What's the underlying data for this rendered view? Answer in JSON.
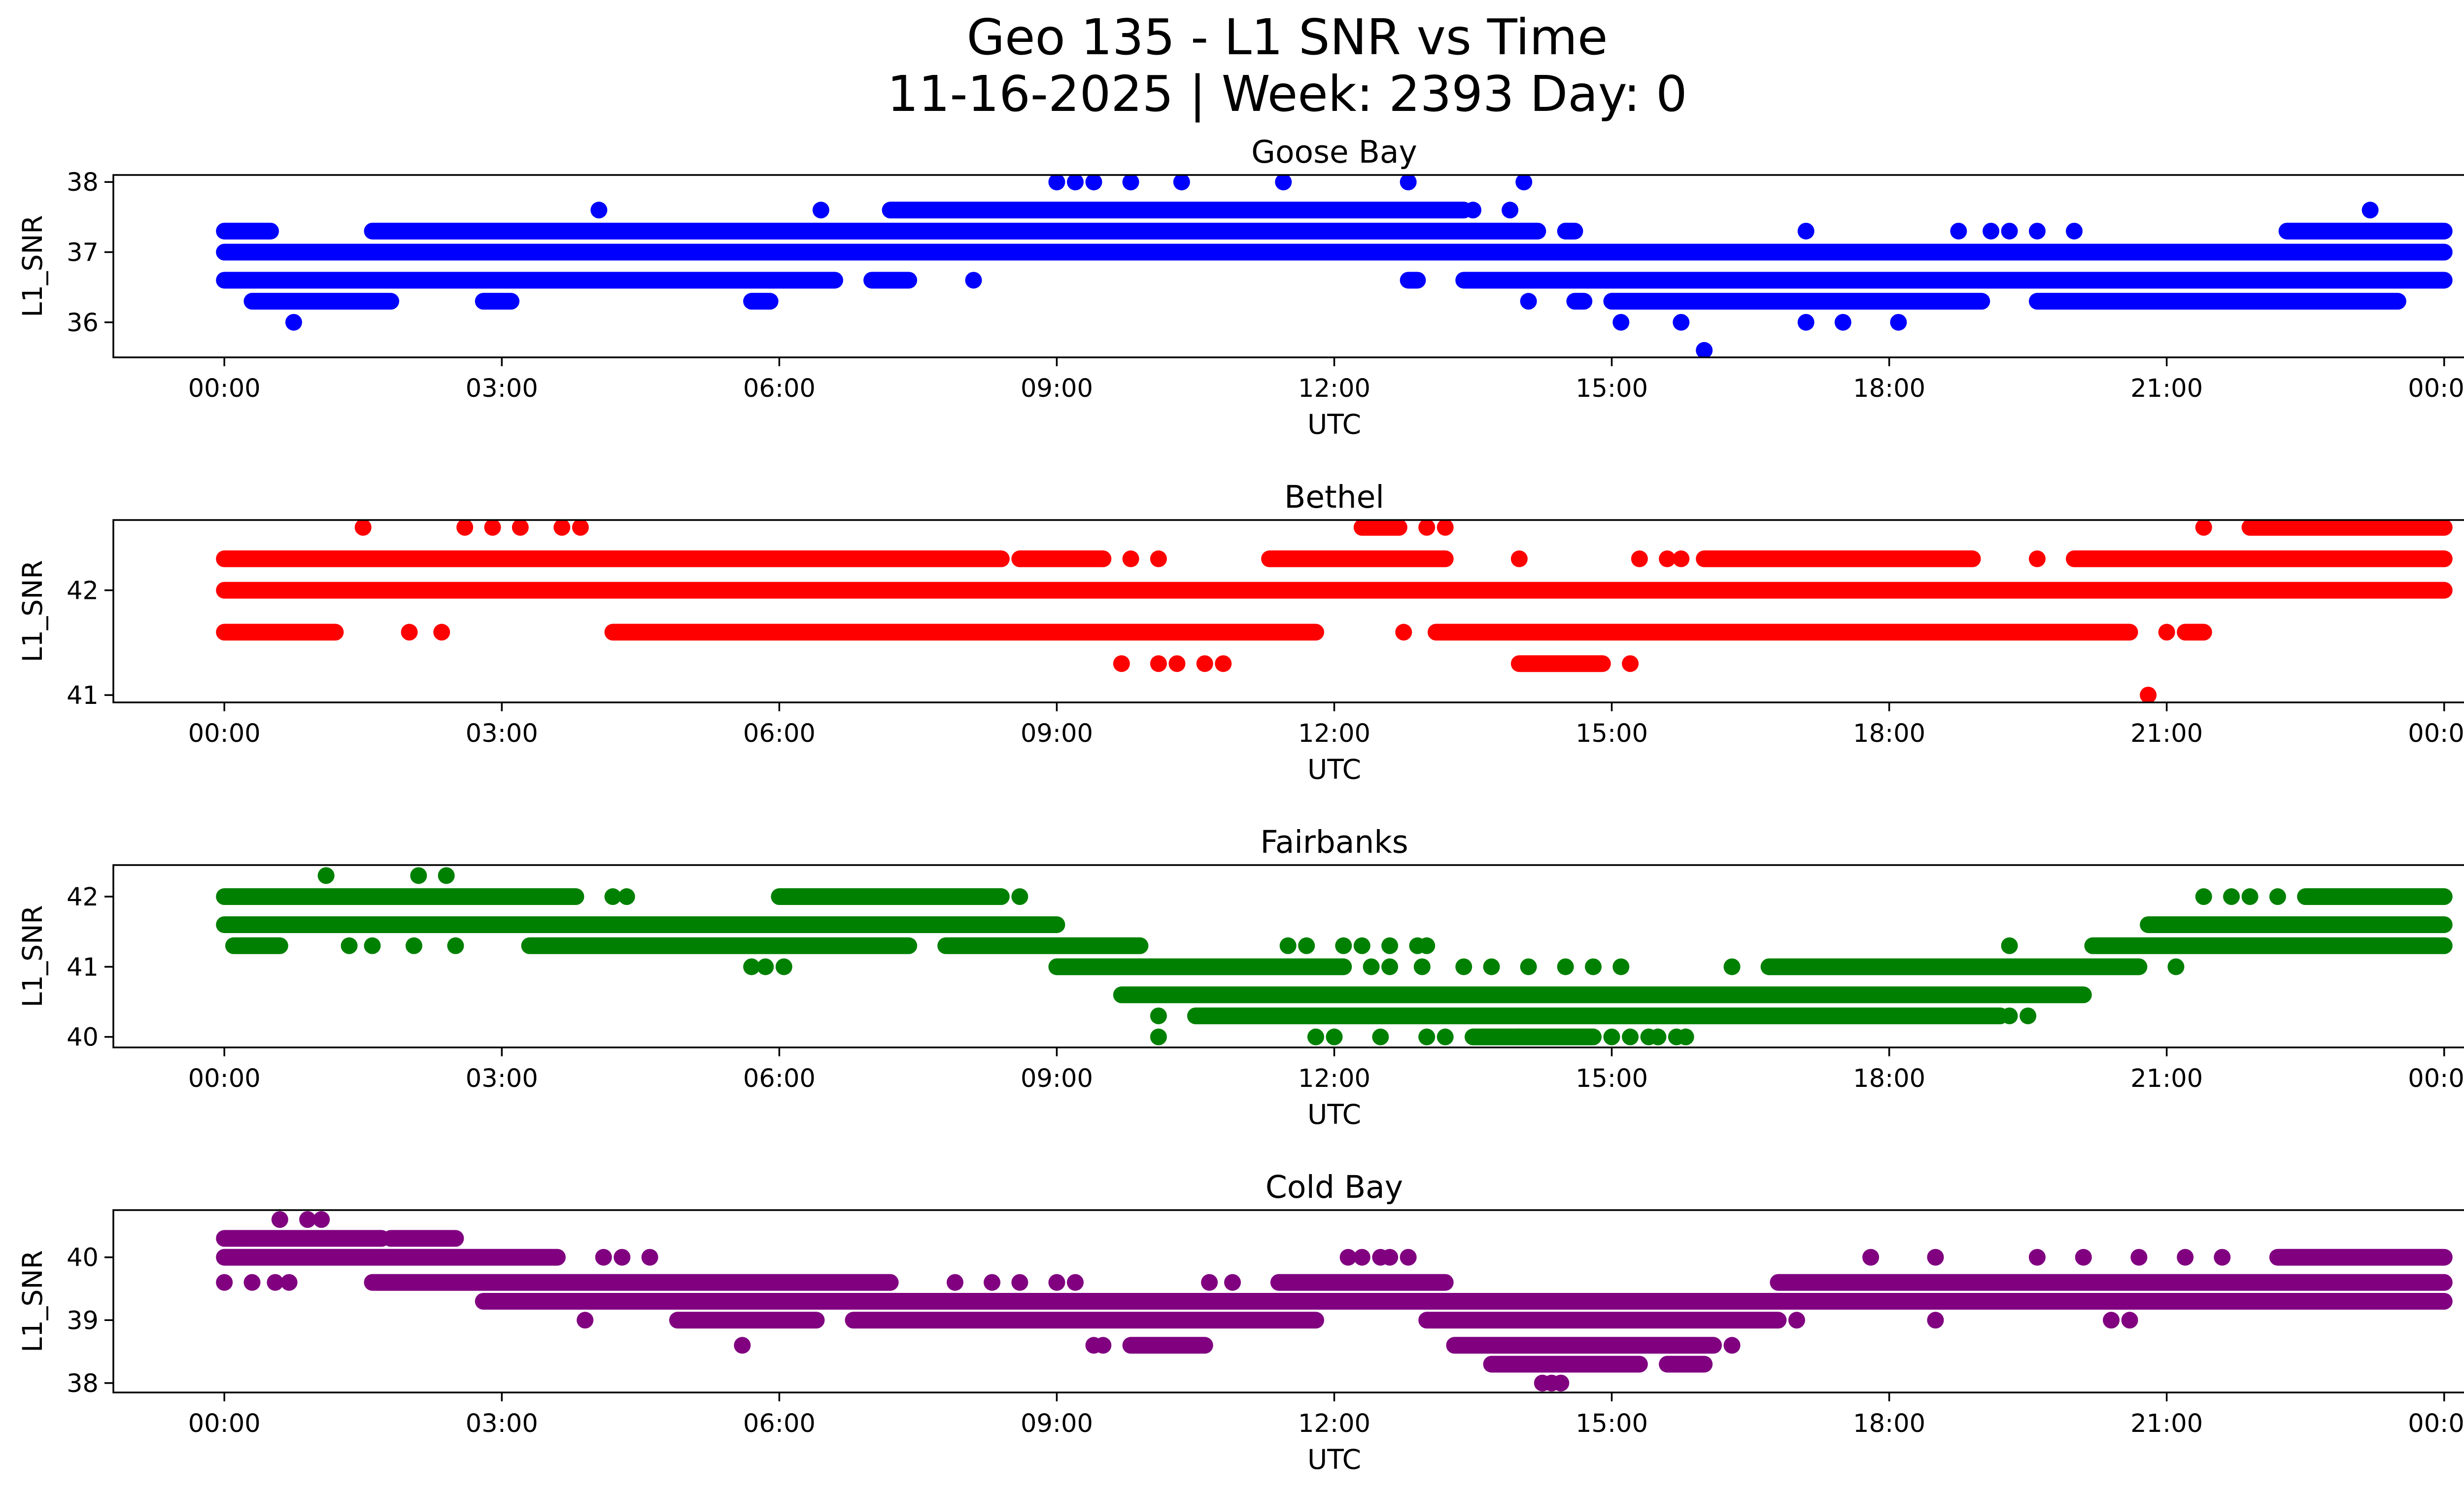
{
  "title_line1": "Geo 135 - L1 SNR vs Time",
  "title_line2": "11-16-2025 | Week: 2393 Day: 0",
  "x_ticks": [
    "00:00",
    "03:00",
    "06:00",
    "09:00",
    "12:00",
    "15:00",
    "18:00",
    "21:00",
    "00:00"
  ],
  "chart_data": [
    {
      "type": "scatter",
      "title": "Goose Bay",
      "xlabel": "UTC",
      "ylabel": "L1_SNR",
      "color": "#0000ff",
      "xlim_hours": [
        -1.2,
        25.2
      ],
      "ylim": [
        35.5,
        38.1
      ],
      "yticks": [
        36,
        37,
        38
      ],
      "bands": [
        {
          "y": 37.0,
          "ranges": [
            [
              0.0,
              24.0
            ]
          ]
        },
        {
          "y": 36.6,
          "ranges": [
            [
              0.0,
              6.6
            ],
            [
              7.0,
              7.4
            ],
            [
              12.8,
              12.9
            ],
            [
              13.4,
              24.0
            ]
          ]
        },
        {
          "y": 37.3,
          "ranges": [
            [
              0.0,
              0.5
            ],
            [
              1.6,
              14.2
            ],
            [
              14.5,
              14.6
            ],
            [
              22.3,
              24.0
            ]
          ]
        },
        {
          "y": 36.3,
          "ranges": [
            [
              0.3,
              1.8
            ],
            [
              2.8,
              3.1
            ],
            [
              5.7,
              5.9
            ],
            [
              14.6,
              14.7
            ],
            [
              15.0,
              19.0
            ],
            [
              19.6,
              23.5
            ]
          ]
        },
        {
          "y": 37.6,
          "ranges": [
            [
              7.2,
              13.4
            ]
          ]
        }
      ],
      "points": [
        {
          "x": 0.75,
          "y": 36.0
        },
        {
          "x": 4.05,
          "y": 37.6
        },
        {
          "x": 6.45,
          "y": 37.6
        },
        {
          "x": 8.1,
          "y": 36.6
        },
        {
          "x": 9.0,
          "y": 38.0
        },
        {
          "x": 9.2,
          "y": 38.0
        },
        {
          "x": 9.4,
          "y": 38.0
        },
        {
          "x": 9.8,
          "y": 38.0
        },
        {
          "x": 10.35,
          "y": 38.0
        },
        {
          "x": 11.45,
          "y": 38.0
        },
        {
          "x": 12.8,
          "y": 38.0
        },
        {
          "x": 14.05,
          "y": 38.0
        },
        {
          "x": 13.5,
          "y": 37.6
        },
        {
          "x": 13.9,
          "y": 37.6
        },
        {
          "x": 15.1,
          "y": 36.0
        },
        {
          "x": 15.75,
          "y": 36.0
        },
        {
          "x": 16.0,
          "y": 35.6
        },
        {
          "x": 17.1,
          "y": 36.0
        },
        {
          "x": 17.5,
          "y": 36.0
        },
        {
          "x": 18.1,
          "y": 36.0
        },
        {
          "x": 17.1,
          "y": 37.3
        },
        {
          "x": 18.75,
          "y": 37.3
        },
        {
          "x": 19.1,
          "y": 37.3
        },
        {
          "x": 19.3,
          "y": 37.3
        },
        {
          "x": 19.6,
          "y": 37.3
        },
        {
          "x": 20.0,
          "y": 37.3
        },
        {
          "x": 23.2,
          "y": 37.6
        },
        {
          "x": 9.15,
          "y": 37.0
        },
        {
          "x": 14.1,
          "y": 36.3
        }
      ]
    },
    {
      "type": "scatter",
      "title": "Bethel",
      "xlabel": "UTC",
      "ylabel": "L1_SNR",
      "color": "#ff0000",
      "xlim_hours": [
        -1.2,
        25.2
      ],
      "ylim": [
        40.93,
        42.67
      ],
      "yticks": [
        41,
        42
      ],
      "bands": [
        {
          "y": 42.0,
          "ranges": [
            [
              0.0,
              24.0
            ]
          ]
        },
        {
          "y": 42.3,
          "ranges": [
            [
              0.0,
              8.4
            ],
            [
              8.6,
              9.5
            ],
            [
              11.3,
              13.2
            ],
            [
              16.0,
              18.9
            ],
            [
              20.0,
              24.0
            ]
          ]
        },
        {
          "y": 41.6,
          "ranges": [
            [
              0.0,
              1.2
            ],
            [
              4.2,
              11.8
            ],
            [
              13.1,
              20.6
            ],
            [
              21.2,
              21.4
            ]
          ]
        },
        {
          "y": 42.6,
          "ranges": [
            [
              12.3,
              12.7
            ],
            [
              21.9,
              24.0
            ]
          ]
        },
        {
          "y": 41.3,
          "ranges": [
            [
              14.0,
              14.9
            ]
          ]
        }
      ],
      "points": [
        {
          "x": 1.5,
          "y": 42.6
        },
        {
          "x": 2.6,
          "y": 42.6
        },
        {
          "x": 2.9,
          "y": 42.6
        },
        {
          "x": 3.2,
          "y": 42.6
        },
        {
          "x": 3.65,
          "y": 42.6
        },
        {
          "x": 3.85,
          "y": 42.6
        },
        {
          "x": 13.0,
          "y": 42.6
        },
        {
          "x": 13.2,
          "y": 42.6
        },
        {
          "x": 21.4,
          "y": 42.6
        },
        {
          "x": 9.7,
          "y": 41.3
        },
        {
          "x": 10.1,
          "y": 41.3
        },
        {
          "x": 10.3,
          "y": 41.3
        },
        {
          "x": 10.6,
          "y": 41.3
        },
        {
          "x": 10.8,
          "y": 41.3
        },
        {
          "x": 15.2,
          "y": 41.3
        },
        {
          "x": 20.8,
          "y": 41.0
        },
        {
          "x": 2.0,
          "y": 41.6
        },
        {
          "x": 2.35,
          "y": 41.6
        },
        {
          "x": 12.75,
          "y": 41.6
        },
        {
          "x": 21.0,
          "y": 41.6
        },
        {
          "x": 9.8,
          "y": 42.3
        },
        {
          "x": 10.1,
          "y": 42.3
        },
        {
          "x": 14.0,
          "y": 42.3
        },
        {
          "x": 15.3,
          "y": 42.3
        },
        {
          "x": 15.6,
          "y": 42.3
        },
        {
          "x": 15.75,
          "y": 42.3
        },
        {
          "x": 19.6,
          "y": 42.3
        }
      ]
    },
    {
      "type": "scatter",
      "title": "Fairbanks",
      "xlabel": "UTC",
      "ylabel": "L1_SNR",
      "color": "#008000",
      "xlim_hours": [
        -1.2,
        25.2
      ],
      "ylim": [
        39.85,
        42.45
      ],
      "yticks": [
        40,
        41,
        42
      ],
      "bands": [
        {
          "y": 41.6,
          "ranges": [
            [
              0.0,
              9.0
            ],
            [
              20.8,
              24.0
            ]
          ]
        },
        {
          "y": 42.0,
          "ranges": [
            [
              0.0,
              3.8
            ],
            [
              6.0,
              8.4
            ],
            [
              22.5,
              24.0
            ]
          ]
        },
        {
          "y": 41.3,
          "ranges": [
            [
              0.1,
              0.6
            ],
            [
              3.3,
              7.4
            ],
            [
              7.8,
              9.9
            ],
            [
              20.2,
              24.0
            ]
          ]
        },
        {
          "y": 41.0,
          "ranges": [
            [
              9.0,
              12.1
            ],
            [
              16.7,
              20.7
            ]
          ]
        },
        {
          "y": 40.6,
          "ranges": [
            [
              9.7,
              20.1
            ]
          ]
        },
        {
          "y": 40.3,
          "ranges": [
            [
              10.5,
              19.2
            ]
          ]
        },
        {
          "y": 40.0,
          "ranges": [
            [
              13.5,
              14.8
            ]
          ]
        }
      ],
      "points": [
        {
          "x": 1.1,
          "y": 42.3
        },
        {
          "x": 2.1,
          "y": 42.3
        },
        {
          "x": 2.4,
          "y": 42.3
        },
        {
          "x": 4.2,
          "y": 42.0
        },
        {
          "x": 4.35,
          "y": 42.0
        },
        {
          "x": 8.6,
          "y": 42.0
        },
        {
          "x": 21.4,
          "y": 42.0
        },
        {
          "x": 21.7,
          "y": 42.0
        },
        {
          "x": 21.9,
          "y": 42.0
        },
        {
          "x": 22.2,
          "y": 42.0
        },
        {
          "x": 1.35,
          "y": 41.3
        },
        {
          "x": 1.6,
          "y": 41.3
        },
        {
          "x": 2.05,
          "y": 41.3
        },
        {
          "x": 2.5,
          "y": 41.3
        },
        {
          "x": 19.5,
          "y": 40.3
        },
        {
          "x": 19.3,
          "y": 40.3
        },
        {
          "x": 5.7,
          "y": 41.0
        },
        {
          "x": 5.85,
          "y": 41.0
        },
        {
          "x": 6.05,
          "y": 41.0
        },
        {
          "x": 12.4,
          "y": 41.0
        },
        {
          "x": 12.6,
          "y": 41.0
        },
        {
          "x": 12.95,
          "y": 41.0
        },
        {
          "x": 13.4,
          "y": 41.0
        },
        {
          "x": 13.7,
          "y": 41.0
        },
        {
          "x": 14.1,
          "y": 41.0
        },
        {
          "x": 14.5,
          "y": 41.0
        },
        {
          "x": 14.8,
          "y": 41.0
        },
        {
          "x": 15.1,
          "y": 41.0
        },
        {
          "x": 16.3,
          "y": 41.0
        },
        {
          "x": 21.1,
          "y": 41.0
        },
        {
          "x": 11.5,
          "y": 41.3
        },
        {
          "x": 11.7,
          "y": 41.3
        },
        {
          "x": 12.1,
          "y": 41.3
        },
        {
          "x": 12.3,
          "y": 41.3
        },
        {
          "x": 12.6,
          "y": 41.3
        },
        {
          "x": 12.9,
          "y": 41.3
        },
        {
          "x": 13.0,
          "y": 41.3
        },
        {
          "x": 19.3,
          "y": 41.3
        },
        {
          "x": 10.1,
          "y": 40.3
        },
        {
          "x": 10.1,
          "y": 40.0
        },
        {
          "x": 11.8,
          "y": 40.0
        },
        {
          "x": 12.0,
          "y": 40.0
        },
        {
          "x": 12.5,
          "y": 40.0
        },
        {
          "x": 13.0,
          "y": 40.0
        },
        {
          "x": 13.2,
          "y": 40.0
        },
        {
          "x": 15.0,
          "y": 40.0
        },
        {
          "x": 15.2,
          "y": 40.0
        },
        {
          "x": 15.4,
          "y": 40.0
        },
        {
          "x": 15.7,
          "y": 40.0
        },
        {
          "x": 15.8,
          "y": 40.0
        },
        {
          "x": 14.0,
          "y": 40.0
        },
        {
          "x": 15.5,
          "y": 40.0
        }
      ]
    },
    {
      "type": "scatter",
      "title": "Cold Bay",
      "xlabel": "UTC",
      "ylabel": "L1_SNR",
      "color": "#800080",
      "xlim_hours": [
        -1.2,
        25.2
      ],
      "ylim": [
        37.85,
        40.75
      ],
      "yticks": [
        38,
        39,
        40
      ],
      "bands": [
        {
          "y": 40.0,
          "ranges": [
            [
              0.0,
              3.6
            ],
            [
              22.2,
              24.0
            ]
          ]
        },
        {
          "y": 40.3,
          "ranges": [
            [
              0.0,
              1.7
            ],
            [
              1.8,
              2.5
            ]
          ]
        },
        {
          "y": 39.6,
          "ranges": [
            [
              1.6,
              7.2
            ],
            [
              11.4,
              13.2
            ],
            [
              16.8,
              24.0
            ]
          ]
        },
        {
          "y": 39.3,
          "ranges": [
            [
              2.8,
              24.0
            ]
          ]
        },
        {
          "y": 39.0,
          "ranges": [
            [
              4.9,
              6.4
            ],
            [
              6.8,
              11.8
            ],
            [
              13.0,
              16.8
            ]
          ]
        },
        {
          "y": 38.6,
          "ranges": [
            [
              9.8,
              10.6
            ],
            [
              13.3,
              16.1
            ]
          ]
        },
        {
          "y": 38.3,
          "ranges": [
            [
              13.7,
              15.3
            ],
            [
              15.6,
              16.0
            ]
          ]
        }
      ],
      "points": [
        {
          "x": 0.0,
          "y": 39.6
        },
        {
          "x": 0.3,
          "y": 39.6
        },
        {
          "x": 0.55,
          "y": 39.6
        },
        {
          "x": 0.7,
          "y": 39.6
        },
        {
          "x": 0.6,
          "y": 40.6
        },
        {
          "x": 0.9,
          "y": 40.6
        },
        {
          "x": 1.05,
          "y": 40.6
        },
        {
          "x": 4.1,
          "y": 40.0
        },
        {
          "x": 4.3,
          "y": 40.0
        },
        {
          "x": 4.6,
          "y": 40.0
        },
        {
          "x": 12.15,
          "y": 40.0
        },
        {
          "x": 12.3,
          "y": 40.0
        },
        {
          "x": 12.5,
          "y": 40.0
        },
        {
          "x": 12.6,
          "y": 40.0
        },
        {
          "x": 12.8,
          "y": 40.0
        },
        {
          "x": 17.8,
          "y": 40.0
        },
        {
          "x": 18.5,
          "y": 40.0
        },
        {
          "x": 19.6,
          "y": 40.0
        },
        {
          "x": 20.1,
          "y": 40.0
        },
        {
          "x": 20.7,
          "y": 40.0
        },
        {
          "x": 21.2,
          "y": 40.0
        },
        {
          "x": 21.6,
          "y": 40.0
        },
        {
          "x": 3.9,
          "y": 39.0
        },
        {
          "x": 18.5,
          "y": 39.0
        },
        {
          "x": 20.4,
          "y": 39.0
        },
        {
          "x": 20.6,
          "y": 39.0
        },
        {
          "x": 17.0,
          "y": 39.0
        },
        {
          "x": 5.6,
          "y": 38.6
        },
        {
          "x": 9.4,
          "y": 38.6
        },
        {
          "x": 9.5,
          "y": 38.6
        },
        {
          "x": 7.9,
          "y": 39.6
        },
        {
          "x": 8.3,
          "y": 39.6
        },
        {
          "x": 8.6,
          "y": 39.6
        },
        {
          "x": 9.0,
          "y": 39.6
        },
        {
          "x": 9.2,
          "y": 39.6
        },
        {
          "x": 10.65,
          "y": 39.6
        },
        {
          "x": 10.9,
          "y": 39.6
        },
        {
          "x": 14.25,
          "y": 38.0
        },
        {
          "x": 14.35,
          "y": 38.0
        },
        {
          "x": 14.45,
          "y": 38.0
        },
        {
          "x": 14.0,
          "y": 39.3
        },
        {
          "x": 13.5,
          "y": 39.3
        },
        {
          "x": 15.2,
          "y": 39.3
        },
        {
          "x": 16.3,
          "y": 38.6
        }
      ]
    }
  ]
}
